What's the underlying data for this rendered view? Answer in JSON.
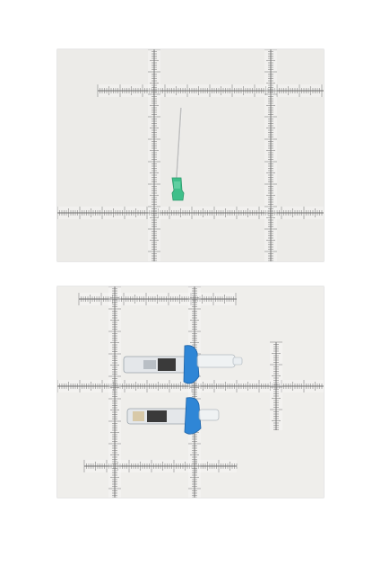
{
  "page": {
    "background": "#ffffff"
  },
  "photos": [
    {
      "id": "photo-1",
      "subject": "hypodermic-needle",
      "background": "#ecebe8",
      "ruler_color": "#6f6f6f",
      "hub_color": "#3fbf8a"
    },
    {
      "id": "photo-2",
      "subject": "prefilled-syringes",
      "background": "#efeeeb",
      "ruler_color": "#6f6f6f",
      "flange_color": "#2f86d6"
    }
  ]
}
